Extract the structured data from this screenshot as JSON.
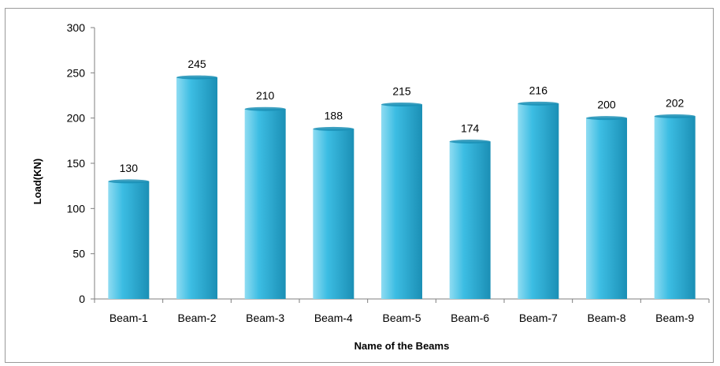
{
  "chart_data": {
    "type": "bar",
    "categories": [
      "Beam-1",
      "Beam-2",
      "Beam-3",
      "Beam-4",
      "Beam-5",
      "Beam-6",
      "Beam-7",
      "Beam-8",
      "Beam-9"
    ],
    "values": [
      130,
      245,
      210,
      188,
      215,
      174,
      216,
      200,
      202
    ],
    "data_labels": [
      "130",
      "245",
      "210",
      "188",
      "215",
      "174",
      "216",
      "200",
      "202"
    ],
    "xlabel": "Name of the Beams",
    "ylabel": "Load(KN)",
    "ylim": [
      0,
      300
    ],
    "yticks": [
      0,
      50,
      100,
      150,
      200,
      250,
      300
    ],
    "grid": false,
    "legend": "none",
    "colors": {
      "bar_light": "#8fdcf2",
      "bar_main": "#3cbde3",
      "bar_dark": "#1b8fb5",
      "axis": "#7f7f7f",
      "text": "#000000"
    }
  }
}
